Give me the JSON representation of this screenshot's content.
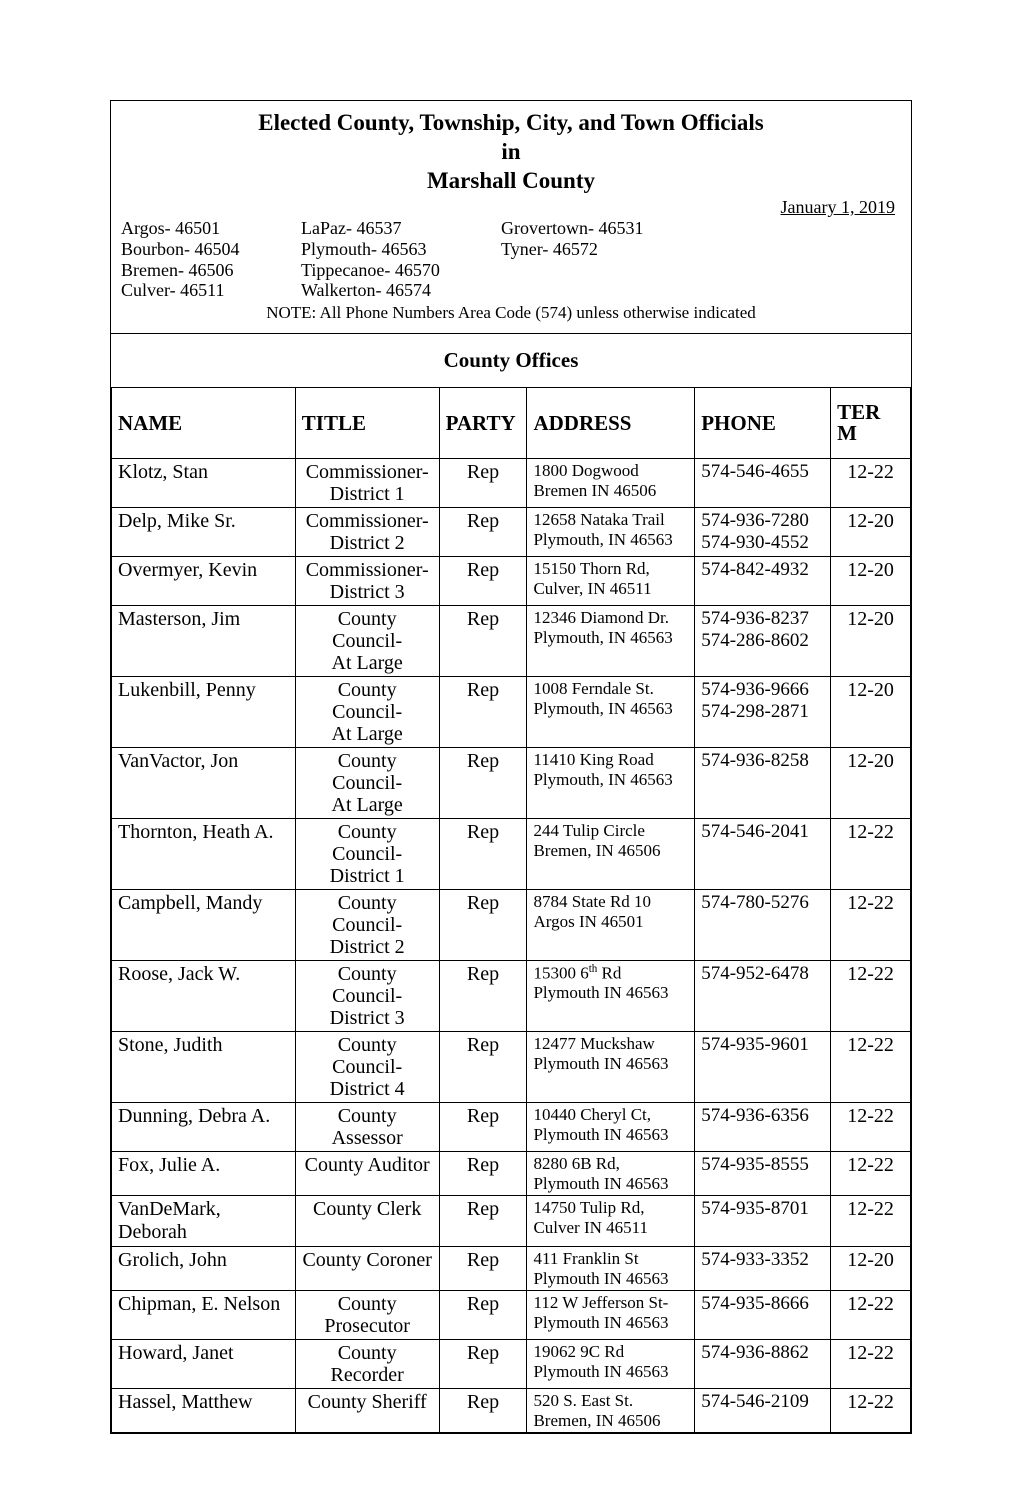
{
  "header": {
    "title_line1": "Elected County, Township, City, and Town Officials",
    "title_line2": "in",
    "title_line3": "Marshall County",
    "date": "January 1, 2019",
    "zips_col1": [
      "Argos- 46501",
      "Bourbon- 46504",
      "Bremen- 46506",
      "Culver- 46511"
    ],
    "zips_col2": [
      "LaPaz- 46537",
      "Plymouth- 46563",
      "Tippecanoe- 46570",
      "Walkerton- 46574"
    ],
    "zips_col3": [
      "Grovertown- 46531",
      "Tyner- 46572"
    ],
    "note": "NOTE: All Phone Numbers Area Code (574) unless otherwise indicated",
    "section": "County Offices"
  },
  "columns": {
    "name": "NAME",
    "title": "TITLE",
    "party": "PARTY",
    "address": "ADDRESS",
    "phone": "PHONE",
    "term": "TERM"
  },
  "rows": [
    {
      "name": "Klotz, Stan",
      "title": "Commissioner-\nDistrict 1",
      "party": "Rep",
      "address": "1800 Dogwood\nBremen IN 46506",
      "phone": "574-546-4655",
      "term": "12-22"
    },
    {
      "name": "Delp, Mike Sr.",
      "title": "Commissioner-\nDistrict 2",
      "party": "Rep",
      "address": "12658 Nataka Trail\nPlymouth, IN  46563",
      "phone": "574-936-7280\n574-930-4552",
      "term": "12-20"
    },
    {
      "name": "Overmyer, Kevin",
      "title": "Commissioner-\nDistrict 3",
      "party": "Rep",
      "address": "15150 Thorn Rd,\nCulver, IN 46511",
      "phone": "574-842-4932",
      "term": "12-20"
    },
    {
      "name": "Masterson, Jim",
      "title": "County Council-\nAt Large",
      "party": "Rep",
      "address": "12346 Diamond Dr.\nPlymouth, IN 46563",
      "phone": "574-936-8237\n574-286-8602",
      "term": "12-20"
    },
    {
      "name": "Lukenbill, Penny",
      "title": "County Council-\nAt Large",
      "party": "Rep",
      "address": "1008 Ferndale St.\nPlymouth, IN  46563",
      "phone": "574-936-9666\n574-298-2871",
      "term": "12-20"
    },
    {
      "name": "VanVactor, Jon",
      "title": "County Council-\nAt Large",
      "party": "Rep",
      "address": "11410 King Road\nPlymouth, IN  46563",
      "phone": "574-936-8258",
      "term": "12-20"
    },
    {
      "name": "Thornton, Heath A.",
      "title": "County Council-\nDistrict 1",
      "party": "Rep",
      "address": "244 Tulip Circle\nBremen, IN  46506",
      "phone": "574-546-2041",
      "term": "12-22"
    },
    {
      "name": "Campbell, Mandy",
      "title": "County Council-\nDistrict 2",
      "party": "Rep",
      "address": "8784 State Rd 10\nArgos IN 46501",
      "phone": "574-780-5276",
      "term": "12-22"
    },
    {
      "name": "Roose, Jack W.",
      "title": "County Council-\nDistrict 3",
      "party": "Rep",
      "address_html": "15300 6<sup>th</sup> Rd<br>Plymouth IN 46563",
      "phone": "574-952-6478",
      "term": "12-22"
    },
    {
      "name": "Stone, Judith",
      "title": "County Council-\nDistrict 4",
      "party": "Rep",
      "address": "12477 Muckshaw\nPlymouth IN 46563",
      "phone": "574-935-9601",
      "term": "12-22"
    },
    {
      "name": "Dunning, Debra A.",
      "title": "County Assessor",
      "party": "Rep",
      "address": "10440 Cheryl Ct,\nPlymouth IN 46563",
      "phone": "574-936-6356",
      "term": "12-22"
    },
    {
      "name": "Fox, Julie A.",
      "title": "County Auditor",
      "party": "Rep",
      "address": "8280 6B Rd,\nPlymouth IN 46563",
      "phone": "574-935-8555",
      "term": "12-22"
    },
    {
      "name": "VanDeMark, Deborah",
      "title": "County Clerk",
      "party": "Rep",
      "address": "14750 Tulip Rd,\nCulver IN 46511",
      "phone": "574-935-8701",
      "term": "12-22"
    },
    {
      "name": "Grolich, John",
      "title": "County Coroner",
      "party": "Rep",
      "address": "411 Franklin St\nPlymouth IN 46563",
      "phone": "574-933-3352",
      "term": "12-20"
    },
    {
      "name": "Chipman, E. Nelson",
      "title": "County\nProsecutor",
      "party": "Rep",
      "address": "112 W Jefferson St-\nPlymouth IN 46563",
      "phone": "574-935-8666",
      "term": "12-22"
    },
    {
      "name": "Howard, Janet",
      "title": "County\nRecorder",
      "party": "Rep",
      "address": "19062 9C Rd\nPlymouth IN 46563",
      "phone": "574-936-8862",
      "term": "12-22"
    },
    {
      "name": "Hassel, Matthew",
      "title": "County Sheriff",
      "party": "Rep",
      "address": "520 S. East St.\nBremen, IN 46506",
      "phone": "574-546-2109",
      "term": "12-22"
    }
  ]
}
